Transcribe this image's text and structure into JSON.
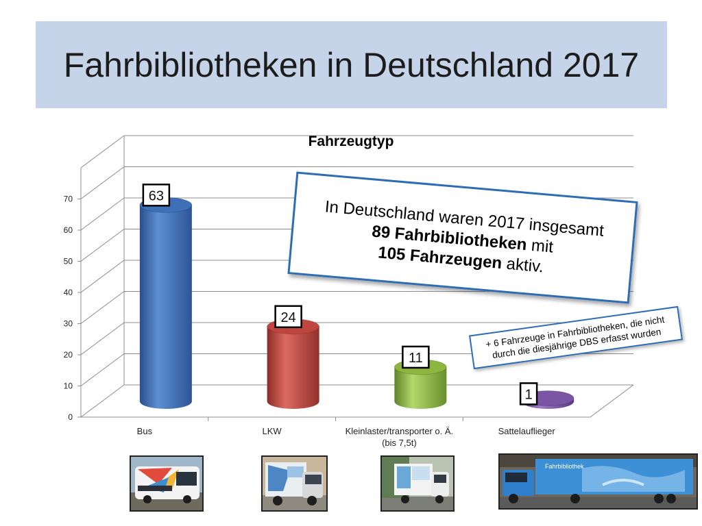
{
  "title": "Fahrbibliotheken in Deutschland 2017",
  "chart_data": {
    "type": "bar",
    "title": "Fahrzeugtyp",
    "categories": [
      "Bus",
      "LKW",
      "Kleinlaster/transporter o. Ä.",
      "Sattelauflieger"
    ],
    "category_lines": [
      [
        "Bus"
      ],
      [
        "LKW"
      ],
      [
        "Kleinlaster/transporter o. Ä.",
        "(bis 7,5t)"
      ],
      [
        "Sattelauflieger"
      ]
    ],
    "values": [
      63,
      24,
      11,
      1
    ],
    "data_labels": [
      "63",
      "24",
      "11",
      "1"
    ],
    "colors": [
      "#3f6fb6",
      "#c0453f",
      "#8cb63e",
      "#7b54a6"
    ],
    "yticks": [
      "0",
      "10",
      "20",
      "30",
      "40",
      "50",
      "60",
      "70"
    ],
    "ylim": [
      0,
      80
    ],
    "grid": true,
    "legend": "none"
  },
  "callouts": {
    "main_line1": "In Deutschland waren 2017 insgesamt",
    "main_line2_bold": "89 Fahrbibliotheken",
    "main_line2_rest": " mit",
    "main_line3_bold": "105 Fahrzeugen",
    "main_line3_rest": " aktiv.",
    "side_line1": "+ 6 Fahrzeuge in Fahrbibliotheken, die nicht",
    "side_line2": "durch die diesjährige DBS erfasst wurden"
  },
  "photos": {
    "van_caption": "Fahrbibliothek"
  }
}
